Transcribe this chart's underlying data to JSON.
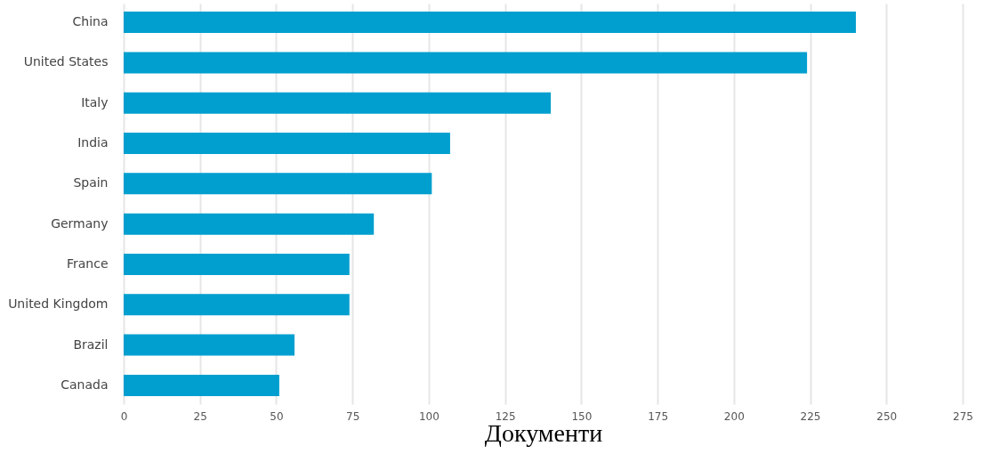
{
  "chart_data": {
    "type": "bar",
    "orientation": "horizontal",
    "xlabel": "Документи",
    "categories": [
      "China",
      "United States",
      "Italy",
      "India",
      "Spain",
      "Germany",
      "France",
      "United Kingdom",
      "Brazil",
      "Canada"
    ],
    "values": [
      240,
      224,
      140,
      107,
      101,
      82,
      74,
      74,
      56,
      51
    ],
    "color": "#009fcf",
    "xlim": [
      0,
      275
    ],
    "xticks": [
      0,
      25,
      50,
      75,
      100,
      125,
      150,
      175,
      200,
      225,
      250,
      275
    ],
    "grid": "x"
  }
}
